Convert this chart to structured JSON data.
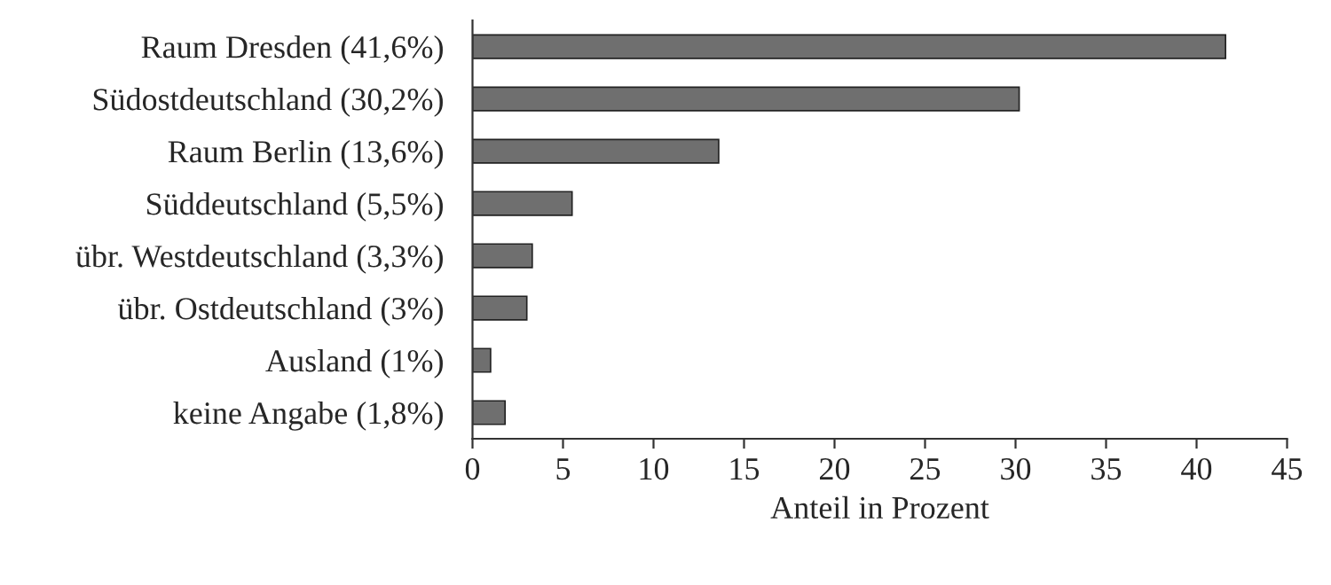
{
  "chart_data": {
    "type": "bar",
    "orientation": "horizontal",
    "xlabel": "Anteil in Prozent",
    "categories": [
      "Raum Dresden (41,6%)",
      "Südostdeutschland (30,2%)",
      "Raum Berlin (13,6%)",
      "Süddeutschland (5,5%)",
      "übr. Westdeutschland (3,3%)",
      "übr. Ostdeutschland (3%)",
      "Ausland (1%)",
      "keine Angabe (1,8%)"
    ],
    "values": [
      41.6,
      30.2,
      13.6,
      5.5,
      3.3,
      3,
      1,
      1.8
    ],
    "color": "#6f6f6f",
    "xlim": [
      0,
      45
    ],
    "xticks": [
      0,
      5,
      10,
      15,
      20,
      25,
      30,
      35,
      40,
      45
    ],
    "grid": false,
    "legend": false
  }
}
